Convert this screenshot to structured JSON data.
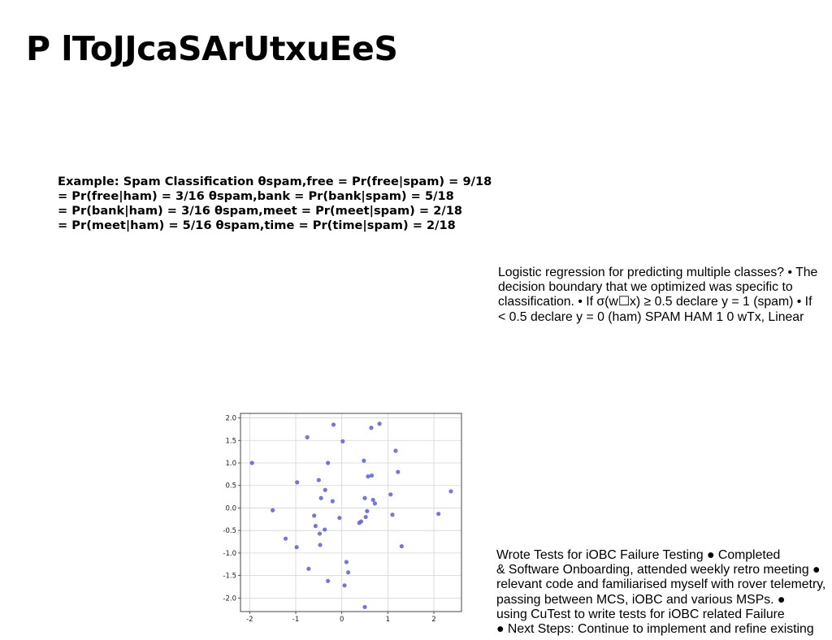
{
  "slide": {
    "title": "P lToJJcaSArUtxuEeS"
  },
  "spam_example": {
    "lines": [
      "Example: Spam Classification θspam,free = Pr(free|spam) = 9/18",
      "= Pr(free|ham) = 3/16 θspam,bank = Pr(bank|spam) = 5/18",
      "= Pr(bank|ham) = 3/16 θspam,meet = Pr(meet|spam) = 2/18",
      "= Pr(meet|ham) = 5/16 θspam,time = Pr(time|spam) = 2/18"
    ]
  },
  "logistic_regression": {
    "lines": [
      "Logistic regression for predicting multiple classes? • The",
      "decision boundary that we optimized was specific to",
      "classification. • If σ(w☐x) ≥ 0.5 declare y = 1 (spam) • If",
      "< 0.5 declare y = 0 (ham) SPAM HAM 1 0 wTx, Linear"
    ]
  },
  "work_summary": {
    "lines": [
      "Wrote Tests for iOBC Failure Testing ● Completed",
      "& Software Onboarding, attended weekly retro meeting ●",
      "relevant code and familiarised myself with rover telemetry,",
      "passing between MCS, iOBC and various MSPs. ●",
      "using CuTest to write tests for iOBC related Failure",
      "● Next Steps: Continue to implement and refine existing"
    ]
  },
  "chart_data": {
    "type": "scatter",
    "title": "",
    "xlabel": "",
    "ylabel": "",
    "xlim": [
      -2.2,
      2.6
    ],
    "ylim": [
      -2.3,
      2.1
    ],
    "xticks": [
      -2,
      -1,
      0,
      1,
      2
    ],
    "yticks": [
      -2.0,
      -1.5,
      -1.0,
      -0.5,
      0.0,
      0.5,
      1.0,
      1.5,
      2.0
    ],
    "xtick_labels": [
      "-2",
      "-1",
      "0",
      "1",
      "2"
    ],
    "ytick_labels": [
      "-2.0",
      "-1.5",
      "-1.0",
      "-0.5",
      "0.0",
      "0.5",
      "1.0",
      "1.5",
      "2.0"
    ],
    "grid": true,
    "legend": "none",
    "point_color": "#5a5fd6",
    "points": [
      [
        -1.95,
        1.0
      ],
      [
        -1.5,
        -0.05
      ],
      [
        -1.22,
        -0.68
      ],
      [
        -0.98,
        -0.87
      ],
      [
        -0.97,
        0.57
      ],
      [
        -0.75,
        1.57
      ],
      [
        -0.72,
        -1.35
      ],
      [
        -0.6,
        -0.17
      ],
      [
        -0.57,
        -0.4
      ],
      [
        -0.48,
        -0.57
      ],
      [
        -0.5,
        0.62
      ],
      [
        -0.45,
        0.22
      ],
      [
        -0.47,
        -0.82
      ],
      [
        -0.36,
        0.4
      ],
      [
        -0.37,
        -0.48
      ],
      [
        -0.3,
        1.0
      ],
      [
        -0.3,
        -1.62
      ],
      [
        -0.2,
        0.15
      ],
      [
        -0.18,
        1.85
      ],
      [
        -0.05,
        -0.22
      ],
      [
        0.02,
        1.48
      ],
      [
        0.06,
        -1.72
      ],
      [
        0.1,
        -1.2
      ],
      [
        0.14,
        -1.43
      ],
      [
        0.38,
        -0.33
      ],
      [
        0.42,
        -0.3
      ],
      [
        0.48,
        1.05
      ],
      [
        0.5,
        0.22
      ],
      [
        0.52,
        -0.2
      ],
      [
        0.55,
        -0.07
      ],
      [
        0.57,
        0.7
      ],
      [
        0.5,
        -2.2
      ],
      [
        0.64,
        1.78
      ],
      [
        0.65,
        0.72
      ],
      [
        0.68,
        0.18
      ],
      [
        0.72,
        0.1
      ],
      [
        0.82,
        1.87
      ],
      [
        1.06,
        0.3
      ],
      [
        1.1,
        -0.15
      ],
      [
        1.17,
        1.27
      ],
      [
        1.22,
        0.8
      ],
      [
        1.3,
        -0.85
      ],
      [
        2.1,
        -0.13
      ],
      [
        2.37,
        0.37
      ]
    ]
  }
}
